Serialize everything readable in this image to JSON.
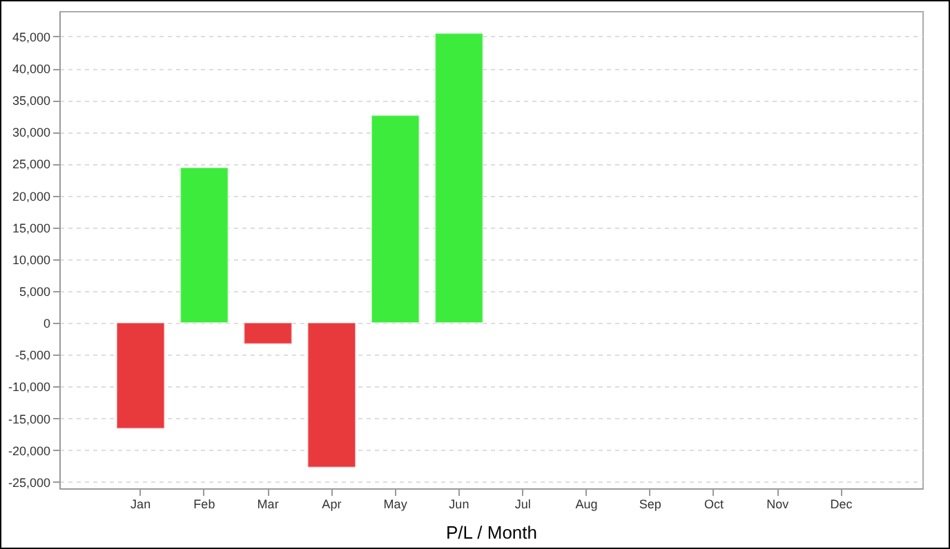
{
  "chart_data": {
    "type": "bar",
    "xlabel": "P/L / Month",
    "categories": [
      "Jan",
      "Feb",
      "Mar",
      "Apr",
      "May",
      "Jun",
      "Jul",
      "Aug",
      "Sep",
      "Oct",
      "Nov",
      "Dec"
    ],
    "values": [
      -16600,
      24400,
      -3300,
      -22700,
      32600,
      45500,
      null,
      null,
      null,
      null,
      null,
      null
    ],
    "colors": [
      "#e8393d",
      "#3deb3d",
      "#e8393d",
      "#e8393d",
      "#3deb3d",
      "#3deb3d",
      null,
      null,
      null,
      null,
      null,
      null
    ],
    "ylim": [
      -26000,
      49000
    ],
    "yticks": [
      {
        "value": -25000,
        "label": "-25,000"
      },
      {
        "value": -20000,
        "label": "-20,000"
      },
      {
        "value": -15000,
        "label": "-15,000"
      },
      {
        "value": -10000,
        "label": "-10,000"
      },
      {
        "value": -5000,
        "label": "-5,000"
      },
      0,
      {
        "value": 5000,
        "label": "5,000"
      },
      {
        "value": 10000,
        "label": "10,000"
      },
      {
        "value": 15000,
        "label": "15,000"
      },
      {
        "value": 20000,
        "label": "20,000"
      },
      {
        "value": 25000,
        "label": "25,000"
      },
      {
        "value": 30000,
        "label": "30,000"
      },
      {
        "value": 35000,
        "label": "35,000"
      },
      {
        "value": 40000,
        "label": "40,000"
      },
      {
        "value": 45000,
        "label": "45,000"
      }
    ],
    "grid": "y"
  }
}
